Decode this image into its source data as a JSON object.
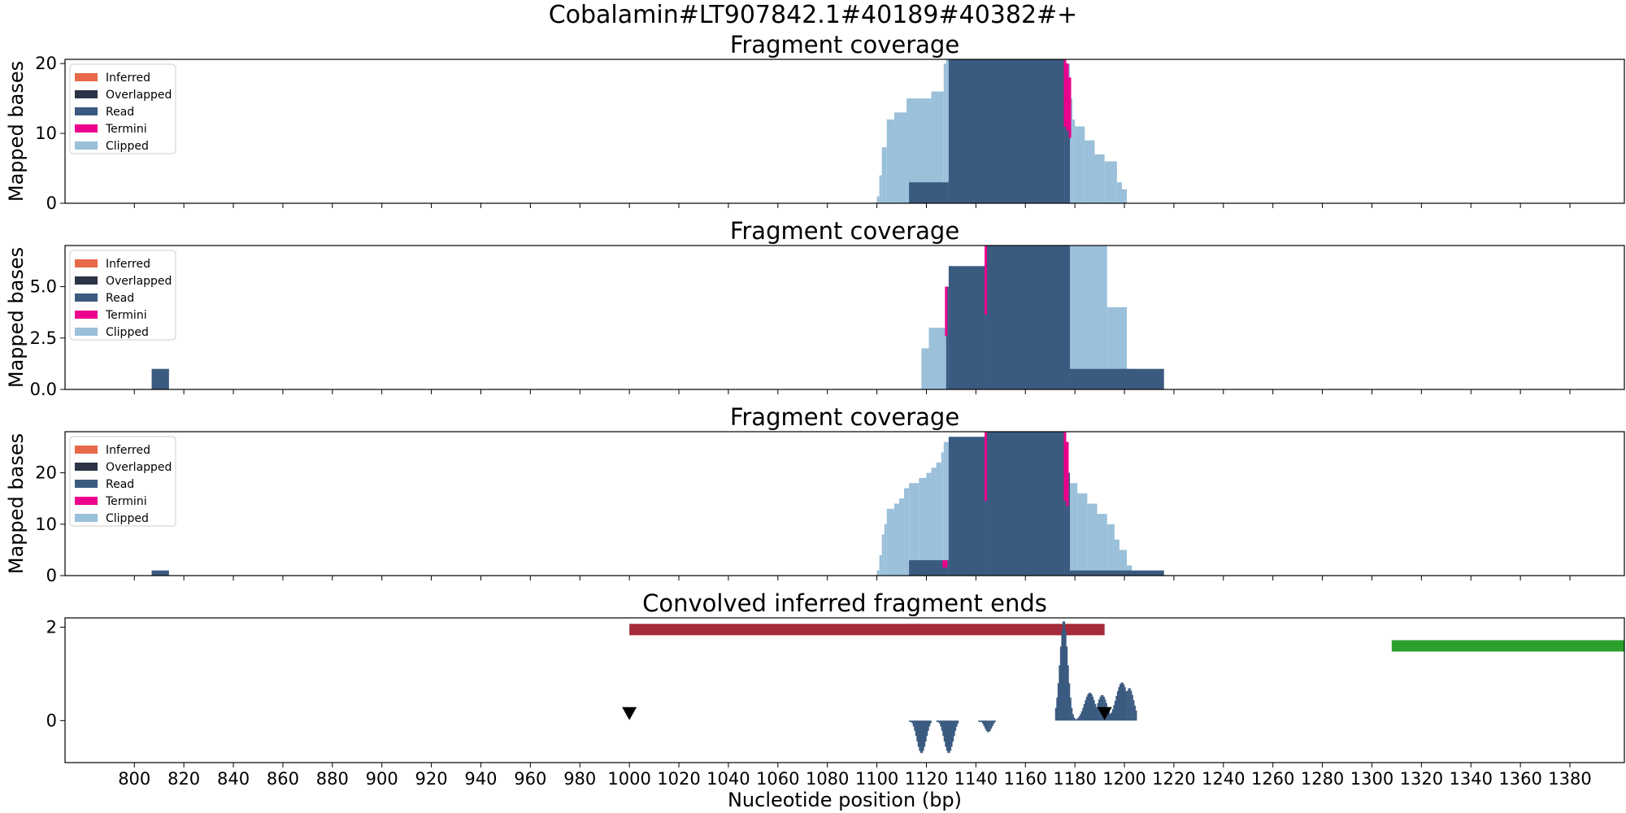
{
  "suptitle": "Cobalamin#LT907842.1#40189#40382#+",
  "colors": {
    "inferred": "#e8684a",
    "overlapped": "#2a3446",
    "read": "#3b5a80",
    "termini": "#ec008c",
    "clipped": "#9ac0da",
    "red_bar": "#a52a3a",
    "green_bar": "#2ca02c",
    "marker": "#000000"
  },
  "chart_data": [
    {
      "type": "area",
      "title": "Fragment coverage",
      "ylabel": "Mapped bases",
      "xlim": [
        772,
        1402
      ],
      "ylim": [
        0,
        20.6
      ],
      "yticks": [
        0,
        10,
        20
      ],
      "yticklabels": [
        "0",
        "10",
        "20"
      ],
      "legend": [
        "Inferred",
        "Overlapped",
        "Read",
        "Termini",
        "Clipped"
      ],
      "legend_position": "top-left",
      "clipped_profile": [
        [
          1100,
          1101,
          1
        ],
        [
          1101,
          1102,
          4
        ],
        [
          1102,
          1104,
          8
        ],
        [
          1104,
          1107,
          12
        ],
        [
          1107,
          1112,
          13
        ],
        [
          1112,
          1122,
          15
        ],
        [
          1122,
          1127,
          16
        ],
        [
          1127,
          1128,
          20
        ],
        [
          1128,
          1129,
          21
        ],
        [
          1177,
          1178,
          20
        ],
        [
          1178,
          1179,
          15
        ],
        [
          1179,
          1180,
          12
        ],
        [
          1180,
          1184,
          11
        ],
        [
          1184,
          1188,
          9
        ],
        [
          1188,
          1192,
          7
        ],
        [
          1192,
          1197,
          6
        ],
        [
          1197,
          1199,
          3
        ],
        [
          1199,
          1201,
          2
        ]
      ],
      "read_profile": [
        [
          1113,
          1129,
          3
        ],
        [
          1129,
          1176,
          21
        ],
        [
          1176,
          1177,
          20
        ],
        [
          1177,
          1178,
          18
        ]
      ],
      "termini_x": [
        1176,
        1177,
        1178
      ]
    },
    {
      "type": "area",
      "title": "Fragment coverage",
      "ylabel": "Mapped bases",
      "xlim": [
        772,
        1402
      ],
      "ylim": [
        0,
        7
      ],
      "yticks": [
        0,
        2.5,
        5
      ],
      "yticklabels": [
        "0.0",
        "2.5",
        "5.0"
      ],
      "legend": [
        "Inferred",
        "Overlapped",
        "Read",
        "Termini",
        "Clipped"
      ],
      "legend_position": "top-left",
      "clipped_profile": [
        [
          1118,
          1121,
          2
        ],
        [
          1121,
          1129,
          3
        ],
        [
          1178,
          1193,
          7
        ],
        [
          1193,
          1201,
          4
        ],
        [
          1201,
          1203,
          1
        ]
      ],
      "read_profile": [
        [
          807,
          814,
          1
        ],
        [
          1128,
          1129,
          5
        ],
        [
          1129,
          1144,
          6
        ],
        [
          1144,
          1178,
          7
        ],
        [
          1178,
          1216,
          1
        ]
      ],
      "termini_x": [
        1128,
        1144
      ]
    },
    {
      "type": "area",
      "title": "Fragment coverage",
      "ylabel": "Mapped bases",
      "xlim": [
        772,
        1402
      ],
      "ylim": [
        0,
        28
      ],
      "yticks": [
        0,
        10,
        20
      ],
      "yticklabels": [
        "0",
        "10",
        "20"
      ],
      "legend": [
        "Inferred",
        "Overlapped",
        "Read",
        "Termini",
        "Clipped"
      ],
      "legend_position": "top-left",
      "clipped_profile": [
        [
          1100,
          1101,
          1
        ],
        [
          1101,
          1102,
          4
        ],
        [
          1102,
          1103,
          8
        ],
        [
          1103,
          1104,
          10
        ],
        [
          1104,
          1107,
          13
        ],
        [
          1107,
          1109,
          14
        ],
        [
          1109,
          1111,
          15
        ],
        [
          1111,
          1113,
          17
        ],
        [
          1113,
          1117,
          18
        ],
        [
          1117,
          1120,
          19
        ],
        [
          1120,
          1122,
          20
        ],
        [
          1122,
          1124,
          21
        ],
        [
          1124,
          1126,
          22
        ],
        [
          1126,
          1127,
          24
        ],
        [
          1127,
          1129,
          26
        ],
        [
          1129,
          1144,
          27
        ],
        [
          1144,
          1176,
          28
        ],
        [
          1178,
          1181,
          18
        ],
        [
          1181,
          1185,
          16
        ],
        [
          1185,
          1189,
          14
        ],
        [
          1189,
          1193,
          12
        ],
        [
          1193,
          1196,
          10
        ],
        [
          1196,
          1198,
          7
        ],
        [
          1198,
          1201,
          5
        ],
        [
          1201,
          1203,
          2
        ]
      ],
      "read_profile": [
        [
          807,
          814,
          1
        ],
        [
          1113,
          1129,
          3
        ],
        [
          1129,
          1144,
          27
        ],
        [
          1144,
          1176,
          28
        ],
        [
          1176,
          1177,
          26
        ],
        [
          1177,
          1178,
          20
        ],
        [
          1178,
          1216,
          1
        ]
      ],
      "termini_x": [
        1127,
        1128,
        1144,
        1176,
        1177
      ]
    },
    {
      "type": "bar",
      "title": "Convolved inferred fragment ends",
      "xlabel": "Nucleotide position (bp)",
      "xlim": [
        772,
        1402
      ],
      "ylim": [
        -0.9,
        2.2
      ],
      "yticks": [
        0,
        2
      ],
      "yticklabels": [
        "0",
        "2"
      ],
      "xticks": [
        800,
        820,
        840,
        860,
        880,
        900,
        920,
        940,
        960,
        980,
        1000,
        1020,
        1040,
        1060,
        1080,
        1100,
        1120,
        1140,
        1160,
        1180,
        1200,
        1220,
        1240,
        1260,
        1280,
        1300,
        1320,
        1340,
        1360,
        1380
      ],
      "xticklabels": [
        "800",
        "820",
        "840",
        "860",
        "880",
        "900",
        "920",
        "940",
        "960",
        "980",
        "1000",
        "1020",
        "1040",
        "1060",
        "1080",
        "1100",
        "1120",
        "1140",
        "1160",
        "1180",
        "1200",
        "1220",
        "1240",
        "1260",
        "1280",
        "1300",
        "1320",
        "1340",
        "1360",
        "1380"
      ],
      "red_interval": {
        "x": [
          1000,
          1192
        ],
        "y": 1.95
      },
      "green_interval": {
        "x": [
          1308,
          1402
        ],
        "y": 1.6
      },
      "markers": [
        {
          "x": 1000,
          "y": 0.15
        },
        {
          "x": 1192,
          "y": 0.15
        }
      ],
      "positive_peaks": [
        {
          "center": 1175.5,
          "height": 2.15,
          "sigma": 1.6
        },
        {
          "center": 1186,
          "height": 0.6,
          "sigma": 2.2
        },
        {
          "center": 1191,
          "height": 0.55,
          "sigma": 2.0
        },
        {
          "center": 1199,
          "height": 0.82,
          "sigma": 2.4
        },
        {
          "center": 1202,
          "height": 0.7,
          "sigma": 1.8
        }
      ],
      "positive_range": [
        1172,
        1205
      ],
      "negative_peaks": [
        {
          "center": 1118,
          "depth": 0.7,
          "range": [
            1113,
            1122
          ]
        },
        {
          "center": 1129,
          "depth": 0.7,
          "range": [
            1124,
            1133
          ]
        },
        {
          "center": 1145,
          "depth": 0.25,
          "range": [
            1141,
            1148
          ]
        }
      ]
    }
  ]
}
